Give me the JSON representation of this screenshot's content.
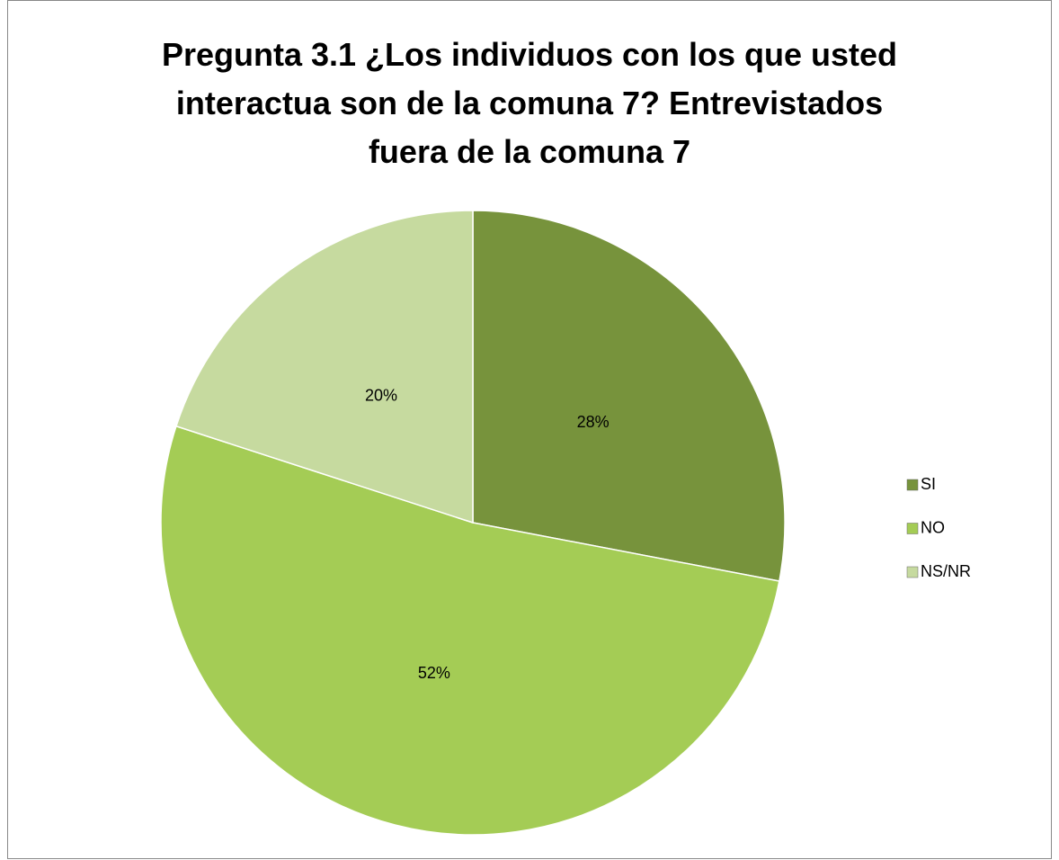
{
  "chart_data": {
    "type": "pie",
    "title": "Pregunta 3.1 ¿Los individuos con los que usted interactua son de la comuna 7? Entrevistados fuera de la comuna 7",
    "categories": [
      "SI",
      "NO",
      "NS/NR"
    ],
    "values": [
      28,
      52,
      20
    ],
    "value_labels": [
      "28%",
      "52%",
      "20%"
    ],
    "colors": [
      "#77933c",
      "#a4cc55",
      "#c6da9f"
    ],
    "legend": "right"
  }
}
